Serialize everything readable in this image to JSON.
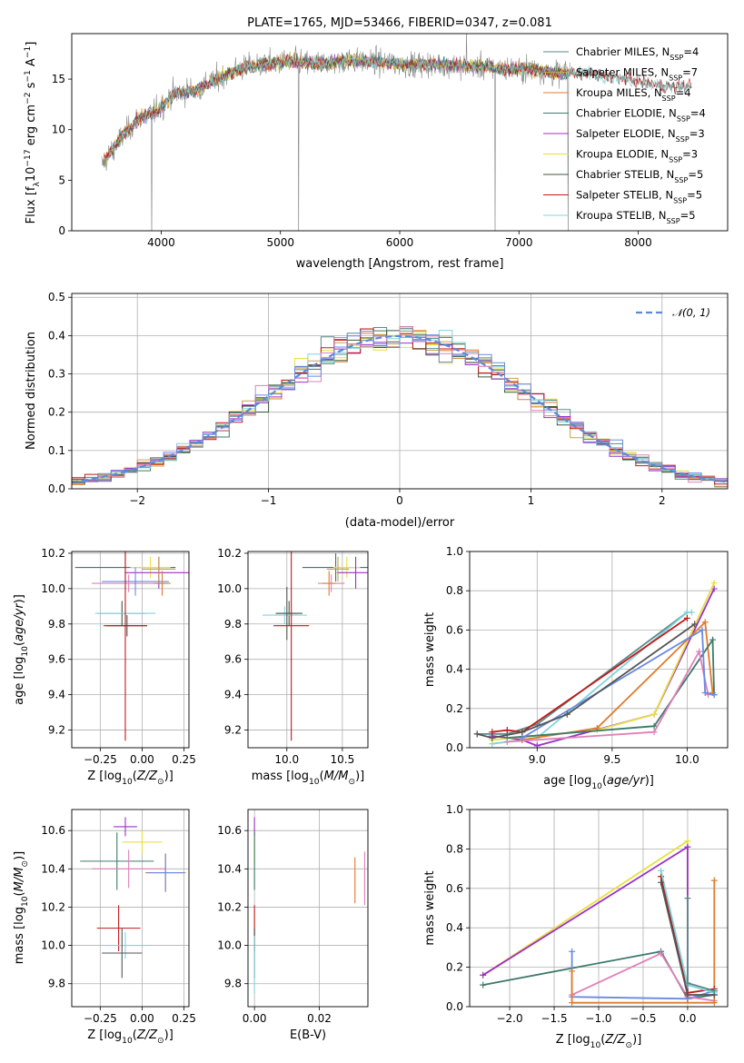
{
  "chart_data": [
    {
      "id": "spectrum",
      "type": "line",
      "title": "PLATE=1765, MJD=53466, FIBERID=0347, z=0.081",
      "xlabel": "wavelength [Angstrom, rest frame]",
      "ylabel": "Flux [f$_\\lambda$10$^{-17}$ erg cm$^{-2}$ s$^{-1}$ A$^{-1}$]",
      "ylabel_parts": {
        "pre": "Flux [f",
        "sub1": "λ",
        "mid": "10",
        "sup1": "−17",
        "mid2": " erg cm",
        "sup2": "−2",
        "mid3": " s",
        "sup3": "−1",
        "mid4": " A",
        "sup4": "−1",
        "post": "]"
      },
      "xlim": [
        3250,
        8750
      ],
      "ylim": [
        0,
        19.5
      ],
      "xticks": [
        4000,
        5000,
        6000,
        7000,
        8000
      ],
      "yticks": [
        0,
        5,
        10,
        15
      ],
      "grid": false,
      "legend_position": "upper right",
      "series": [
        {
          "name": "Chabrier MILES, N",
          "sub": "SSP",
          "suffix": "=4",
          "color": "#5a8a8a"
        },
        {
          "name": "Salpeter MILES, N",
          "sub": "SSP",
          "suffix": "=7",
          "color": "#c9a04a"
        },
        {
          "name": "Kroupa MILES, N",
          "sub": "SSP",
          "suffix": "=4",
          "color": "#e07b2c"
        },
        {
          "name": "Chabrier ELODIE, N",
          "sub": "SSP",
          "suffix": "=4",
          "color": "#3d7a6a"
        },
        {
          "name": "Salpeter ELODIE, N",
          "sub": "SSP",
          "suffix": "=3",
          "color": "#9b30c8"
        },
        {
          "name": "Kroupa ELODIE, N",
          "sub": "SSP",
          "suffix": "=3",
          "color": "#e8e040"
        },
        {
          "name": "Chabrier STELIB, N",
          "sub": "SSP",
          "suffix": "=5",
          "color": "#3c5a3c"
        },
        {
          "name": "Salpeter STELIB, N",
          "sub": "SSP",
          "suffix": "=5",
          "color": "#c21818"
        },
        {
          "name": "Kroupa STELIB, N",
          "sub": "SSP",
          "suffix": "=5",
          "color": "#7fd4dc"
        }
      ],
      "continuum": [
        [
          3500,
          6.5
        ],
        [
          3650,
          9
        ],
        [
          3800,
          11
        ],
        [
          3900,
          11.5
        ],
        [
          4000,
          12.2
        ],
        [
          4100,
          13.5
        ],
        [
          4300,
          14
        ],
        [
          4500,
          15.2
        ],
        [
          4700,
          16.2
        ],
        [
          4900,
          16.5
        ],
        [
          5100,
          16.8
        ],
        [
          5300,
          16.5
        ],
        [
          5500,
          16.8
        ],
        [
          5700,
          16.8
        ],
        [
          5900,
          16.6
        ],
        [
          6100,
          16.4
        ],
        [
          6300,
          16.5
        ],
        [
          6500,
          16.3
        ],
        [
          6700,
          16.2
        ],
        [
          6900,
          16
        ],
        [
          7100,
          16
        ],
        [
          7300,
          15.6
        ],
        [
          7600,
          15.6
        ],
        [
          7900,
          15
        ],
        [
          8100,
          14.5
        ],
        [
          8300,
          14.2
        ],
        [
          8450,
          14.5
        ]
      ],
      "observed_end": 7430,
      "dropouts": [
        3920,
        5150,
        6800,
        7410
      ],
      "spikes": [
        {
          "x": 5150,
          "y": 17.6
        },
        {
          "x": 6560,
          "y": 20
        }
      ]
    },
    {
      "id": "residuals",
      "type": "step",
      "xlabel": "(data-model)/error",
      "ylabel": "Normed distribution",
      "xlim": [
        -2.5,
        2.5
      ],
      "ylim": [
        0,
        0.51
      ],
      "xticks": [
        -2,
        -1,
        0,
        1,
        2
      ],
      "yticks": [
        0.0,
        0.1,
        0.2,
        0.3,
        0.4,
        0.5
      ],
      "grid": true,
      "legend_position": "upper right",
      "reference": {
        "name": "𝒩(0, 1)",
        "color": "#5b8ad8",
        "style": "dashed"
      },
      "bin_width": 0.1,
      "colors": [
        "#5a8a8a",
        "#c9a04a",
        "#e07b2c",
        "#3d7a6a",
        "#9b30c8",
        "#e8e040",
        "#3c5a3c",
        "#c21818",
        "#7fd4dc",
        "#e080b8",
        "#6a8ae0"
      ]
    },
    {
      "id": "age-vs-Z",
      "type": "scatter",
      "xlabel": "Z [log$_{10}$($Z/Z_\\odot$)]",
      "ylabel": "age  [log$_{10}$($age/yr$)]",
      "xlim": [
        -0.42,
        0.28
      ],
      "ylim": [
        9.1,
        10.21
      ],
      "xticks": [
        -0.25,
        0.0,
        0.25
      ],
      "yticks": [
        9.2,
        9.4,
        9.6,
        9.8,
        10.0,
        10.2
      ],
      "grid": true,
      "points": [
        {
          "x": -0.1,
          "y": 10.12,
          "xerr": 0.3,
          "yerr": 0.08,
          "color": "#3d7a6a"
        },
        {
          "x": 0.05,
          "y": 10.12,
          "xerr": 0.12,
          "yerr": 0.06,
          "color": "#e8e040"
        },
        {
          "x": 0.1,
          "y": 10.09,
          "xerr": 0.2,
          "yerr": 0.09,
          "color": "#9b30c8"
        },
        {
          "x": 0.1,
          "y": 10.11,
          "xerr": 0.1,
          "yerr": 0.07,
          "color": "#c9a04a"
        },
        {
          "x": -0.08,
          "y": 10.03,
          "xerr": 0.22,
          "yerr": 0.05,
          "color": "#e080b8"
        },
        {
          "x": 0.12,
          "y": 10.03,
          "xerr": 0.05,
          "yerr": 0.07,
          "color": "#e07b2c"
        },
        {
          "x": -0.04,
          "y": 10.04,
          "xerr": 0.2,
          "yerr": 0.08,
          "color": "#6a8ae0"
        },
        {
          "x": -0.12,
          "y": 9.86,
          "xerr": 0.14,
          "yerr": 0.07,
          "color": "#3c5a3c"
        },
        {
          "x": -0.1,
          "y": 9.86,
          "xerr": 0.18,
          "yerr": 0.05,
          "color": "#7fd4dc"
        },
        {
          "x": -0.09,
          "y": 9.79,
          "xerr": 0.12,
          "yerr": 0.06,
          "color": "#555555"
        },
        {
          "x": -0.1,
          "y": 9.79,
          "xerr": 0.13,
          "yerr": 0.65,
          "color": "#c21818"
        }
      ]
    },
    {
      "id": "age-vs-mass",
      "type": "scatter",
      "xlabel": "mass [log$_{10}$($M/M_\\odot$)]",
      "ylabel": "",
      "xlim": [
        9.65,
        10.73
      ],
      "ylim": [
        9.1,
        10.21
      ],
      "xticks": [
        10.0,
        10.5
      ],
      "yticks": [
        9.2,
        9.4,
        9.6,
        9.8,
        10.0,
        10.2
      ],
      "grid": true,
      "points": [
        {
          "x": 10.44,
          "y": 10.12,
          "xerr": 0.3,
          "yerr": 0.08,
          "color": "#3d7a6a"
        },
        {
          "x": 10.54,
          "y": 10.12,
          "xerr": 0.12,
          "yerr": 0.06,
          "color": "#e8e040"
        },
        {
          "x": 10.62,
          "y": 10.09,
          "xerr": 0.17,
          "yerr": 0.09,
          "color": "#9b30c8"
        },
        {
          "x": 10.46,
          "y": 10.11,
          "xerr": 0.1,
          "yerr": 0.07,
          "color": "#c9a04a"
        },
        {
          "x": 10.4,
          "y": 10.03,
          "xerr": 0.12,
          "yerr": 0.05,
          "color": "#e080b8"
        },
        {
          "x": 10.38,
          "y": 10.03,
          "xerr": 0.06,
          "yerr": 0.07,
          "color": "#e07b2c"
        },
        {
          "x": 10.02,
          "y": 9.86,
          "xerr": 0.12,
          "yerr": 0.07,
          "color": "#3c5a3c"
        },
        {
          "x": 9.98,
          "y": 9.85,
          "xerr": 0.2,
          "yerr": 0.05,
          "color": "#7fd4dc"
        },
        {
          "x": 10.0,
          "y": 9.86,
          "xerr": 0.1,
          "yerr": 0.15,
          "color": "#555555"
        },
        {
          "x": 10.04,
          "y": 9.79,
          "xerr": 0.16,
          "yerr": 0.65,
          "color": "#c21818"
        }
      ]
    },
    {
      "id": "weight-vs-age",
      "type": "line",
      "xlabel": "age  [log$_{10}$($age/yr$)]",
      "ylabel": "mass weight",
      "xlim": [
        8.55,
        10.27
      ],
      "ylim": [
        0,
        1.0
      ],
      "xticks": [
        9.0,
        9.5,
        10.0
      ],
      "yticks": [
        0.0,
        0.2,
        0.4,
        0.6,
        0.8,
        1.0
      ],
      "grid": true,
      "series": [
        {
          "color": "#5a8a8a",
          "points": [
            [
              8.6,
              0.07
            ],
            [
              8.8,
              0.07
            ],
            [
              9.0,
              0.12
            ],
            [
              10.0,
              0.69
            ]
          ]
        },
        {
          "color": "#7fd4dc",
          "points": [
            [
              8.7,
              0.02
            ],
            [
              9.0,
              0.05
            ],
            [
              10.0,
              0.69
            ],
            [
              10.03,
              0.69
            ]
          ]
        },
        {
          "color": "#9b30c8",
          "points": [
            [
              8.7,
              0.06
            ],
            [
              8.9,
              0.04
            ],
            [
              9.0,
              0.01
            ],
            [
              9.78,
              0.17
            ],
            [
              10.18,
              0.81
            ]
          ]
        },
        {
          "color": "#e8e040",
          "points": [
            [
              8.7,
              0.04
            ],
            [
              9.4,
              0.09
            ],
            [
              9.78,
              0.17
            ],
            [
              10.18,
              0.84
            ]
          ]
        },
        {
          "color": "#c21818",
          "points": [
            [
              8.7,
              0.08
            ],
            [
              8.8,
              0.09
            ],
            [
              8.9,
              0.08
            ],
            [
              10.0,
              0.66
            ]
          ]
        },
        {
          "color": "#e07b2c",
          "points": [
            [
              8.9,
              0.04
            ],
            [
              9.4,
              0.1
            ],
            [
              10.12,
              0.64
            ],
            [
              10.17,
              0.28
            ]
          ]
        },
        {
          "color": "#3d7a6a",
          "points": [
            [
              8.8,
              0.05
            ],
            [
              9.78,
              0.11
            ],
            [
              10.17,
              0.55
            ],
            [
              10.18,
              0.27
            ]
          ]
        },
        {
          "color": "#e080b8",
          "points": [
            [
              8.8,
              0.03
            ],
            [
              9.78,
              0.08
            ],
            [
              10.08,
              0.49
            ],
            [
              10.14,
              0.27
            ]
          ]
        },
        {
          "color": "#6a8ae0",
          "points": [
            [
              8.9,
              0.05
            ],
            [
              10.1,
              0.6
            ],
            [
              10.12,
              0.28
            ],
            [
              10.18,
              0.27
            ]
          ]
        },
        {
          "color": "#555555",
          "points": [
            [
              8.6,
              0.07
            ],
            [
              8.7,
              0.05
            ],
            [
              8.9,
              0.08
            ],
            [
              9.2,
              0.17
            ],
            [
              10.05,
              0.63
            ]
          ]
        }
      ]
    },
    {
      "id": "mass-vs-Z",
      "type": "scatter",
      "xlabel": "Z [log$_{10}$($Z/Z_\\odot$)]",
      "ylabel": "mass [log$_{10}$($M/M_\\odot$)]",
      "xlim": [
        -0.42,
        0.28
      ],
      "ylim": [
        9.68,
        10.71
      ],
      "xticks": [
        -0.25,
        0.0,
        0.25
      ],
      "yticks": [
        9.8,
        10.0,
        10.2,
        10.4,
        10.6
      ],
      "grid": true,
      "points": [
        {
          "x": -0.1,
          "y": 10.62,
          "xerr": 0.07,
          "yerr": 0.05,
          "color": "#9b30c8"
        },
        {
          "x": 0.0,
          "y": 10.54,
          "xerr": 0.12,
          "yerr": 0.06,
          "color": "#e8e040"
        },
        {
          "x": -0.15,
          "y": 10.44,
          "xerr": 0.22,
          "yerr": 0.15,
          "color": "#3d7a6a"
        },
        {
          "x": -0.08,
          "y": 10.4,
          "xerr": 0.22,
          "yerr": 0.1,
          "color": "#e080b8"
        },
        {
          "x": 0.14,
          "y": 10.38,
          "xerr": 0.12,
          "yerr": 0.1,
          "color": "#e07b2c"
        },
        {
          "x": 0.14,
          "y": 10.38,
          "xerr": 0.11,
          "yerr": 0.1,
          "color": "#6a8ae0"
        },
        {
          "x": -0.14,
          "y": 10.09,
          "xerr": 0.13,
          "yerr": 0.12,
          "color": "#c21818"
        },
        {
          "x": -0.1,
          "y": 10.0,
          "xerr": 0.12,
          "yerr": 0.07,
          "color": "#7fd4dc"
        },
        {
          "x": -0.12,
          "y": 9.96,
          "xerr": 0.12,
          "yerr": 0.13,
          "color": "#555555"
        }
      ]
    },
    {
      "id": "mass-vs-EBV",
      "type": "scatter",
      "xlabel": "E(B-V)",
      "ylabel": "",
      "xlim": [
        -0.002,
        0.035
      ],
      "ylim": [
        9.68,
        10.71
      ],
      "xticks": [
        0.0,
        0.02
      ],
      "yticks": [
        9.8,
        10.0,
        10.2,
        10.4,
        10.6
      ],
      "grid": true,
      "points": [
        {
          "x": 0.0,
          "y": 10.62,
          "xerr": 0,
          "yerr": 0.05,
          "color": "#9b30c8"
        },
        {
          "x": 0.0,
          "y": 10.5,
          "xerr": 0,
          "yerr": 0.08,
          "color": "#e8e040"
        },
        {
          "x": 0.0,
          "y": 10.44,
          "xerr": 0,
          "yerr": 0.15,
          "color": "#3d7a6a"
        },
        {
          "x": 0.034,
          "y": 10.35,
          "xerr": 0,
          "yerr": 0.14,
          "color": "#e080b8"
        },
        {
          "x": 0.031,
          "y": 10.34,
          "xerr": 0,
          "yerr": 0.12,
          "color": "#e07b2c"
        },
        {
          "x": 0.0,
          "y": 10.09,
          "xerr": 0,
          "yerr": 0.12,
          "color": "#c21818"
        },
        {
          "x": 0.0,
          "y": 9.96,
          "xerr": 0,
          "yerr": 0.13,
          "color": "#555555"
        },
        {
          "x": 0.0,
          "y": 9.9,
          "xerr": 0,
          "yerr": 0.15,
          "color": "#7fd4dc"
        }
      ]
    },
    {
      "id": "weight-vs-Z",
      "type": "line",
      "xlabel": "Z [log$_{10}$($Z/Z_\\odot$)]",
      "ylabel": "mass weight",
      "xlim": [
        -2.45,
        0.45
      ],
      "ylim": [
        0,
        1.0
      ],
      "xticks": [
        -2.0,
        -1.5,
        -1.0,
        -0.5,
        0.0
      ],
      "yticks": [
        0.0,
        0.2,
        0.4,
        0.6,
        0.8,
        1.0
      ],
      "grid": true,
      "series": [
        {
          "color": "#e8e040",
          "points": [
            [
              -2.3,
              0.16
            ],
            [
              0.0,
              0.84
            ],
            [
              0.0,
              0.02
            ]
          ]
        },
        {
          "color": "#9b30c8",
          "points": [
            [
              -2.3,
              0.16
            ],
            [
              0.0,
              0.81
            ],
            [
              0.0,
              0.04
            ]
          ]
        },
        {
          "color": "#3d7a6a",
          "points": [
            [
              -2.3,
              0.11
            ],
            [
              -0.3,
              0.28
            ],
            [
              0.0,
              0.04
            ],
            [
              0.3,
              0.06
            ]
          ]
        },
        {
          "color": "#6a8ae0",
          "points": [
            [
              -1.3,
              0.28
            ],
            [
              -1.3,
              0.05
            ],
            [
              0.0,
              0.04
            ],
            [
              0.3,
              0.08
            ]
          ]
        },
        {
          "color": "#e080b8",
          "points": [
            [
              -1.3,
              0.06
            ],
            [
              -0.3,
              0.27
            ],
            [
              0.0,
              0.05
            ],
            [
              0.3,
              0.03
            ]
          ]
        },
        {
          "color": "#e07b2c",
          "points": [
            [
              -1.3,
              0.18
            ],
            [
              -1.3,
              0.02
            ],
            [
              0.3,
              0.02
            ],
            [
              0.3,
              0.64
            ]
          ]
        },
        {
          "color": "#c21818",
          "points": [
            [
              -0.3,
              0.66
            ],
            [
              0.0,
              0.07
            ],
            [
              0.3,
              0.09
            ]
          ]
        },
        {
          "color": "#7fd4dc",
          "points": [
            [
              -0.3,
              0.69
            ],
            [
              0.0,
              0.11
            ],
            [
              0.3,
              0.07
            ]
          ]
        },
        {
          "color": "#555555",
          "points": [
            [
              -0.3,
              0.63
            ],
            [
              0.0,
              0.06
            ],
            [
              0.3,
              0.06
            ]
          ]
        },
        {
          "color": "#5a8a8a",
          "points": [
            [
              0.0,
              0.55
            ],
            [
              0.0,
              0.12
            ],
            [
              0.3,
              0.08
            ]
          ]
        }
      ]
    }
  ]
}
